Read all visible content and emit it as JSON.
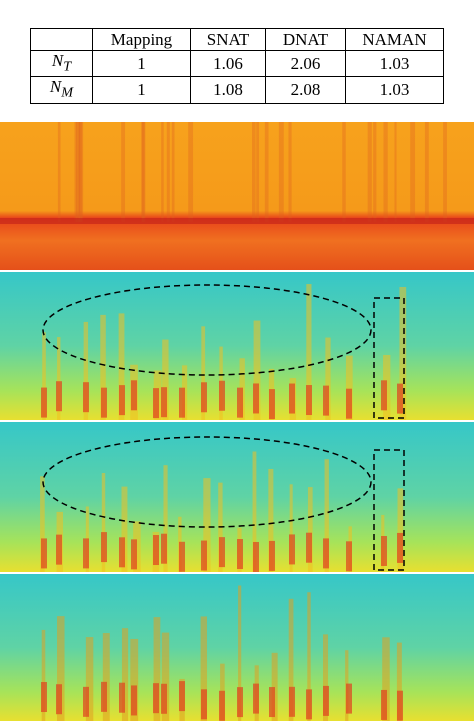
{
  "table": {
    "header": [
      "Mapping",
      "SNAT",
      "DNAT",
      "NAMAN"
    ],
    "rows": [
      {
        "label": {
          "main": "N",
          "sub": "T"
        },
        "cells": [
          "1",
          "1.06",
          "2.06",
          "1.03"
        ]
      },
      {
        "label": {
          "main": "N",
          "sub": "M"
        },
        "cells": [
          "1",
          "1.08",
          "2.08",
          "1.03"
        ]
      }
    ]
  }
}
